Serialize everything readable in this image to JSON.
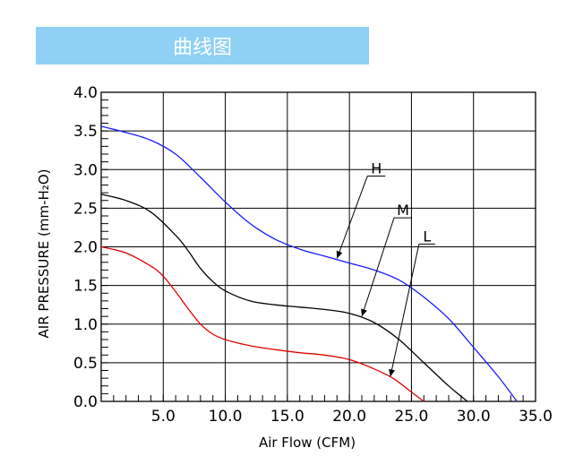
{
  "header": {
    "title": "曲线图"
  },
  "chart_data": {
    "type": "line",
    "title": "",
    "xlabel": "Air Flow (CFM)",
    "ylabel": "AIR PRESSURE (mm-H₂O)",
    "xlim": [
      0,
      35
    ],
    "ylim": [
      0,
      4
    ],
    "x_ticks": [
      "5.0",
      "10.0",
      "15.0",
      "20.0",
      "25.0",
      "30.0",
      "35.0"
    ],
    "y_ticks": [
      "0.0",
      "0.5",
      "1.0",
      "1.5",
      "2.0",
      "2.5",
      "3.0",
      "3.5",
      "4.0"
    ],
    "grid": true,
    "series": [
      {
        "name": "H",
        "color": "#1a1aff",
        "x": [
          0,
          2,
          4,
          6,
          8,
          10,
          12,
          14,
          16,
          18,
          20,
          22,
          24,
          26,
          28,
          30,
          32,
          33.5
        ],
        "y": [
          3.56,
          3.48,
          3.38,
          3.2,
          2.9,
          2.58,
          2.3,
          2.1,
          1.97,
          1.88,
          1.79,
          1.7,
          1.57,
          1.35,
          1.07,
          0.7,
          0.32,
          0
        ]
      },
      {
        "name": "M",
        "color": "#000000",
        "x": [
          0,
          2,
          4,
          6,
          7,
          8,
          9,
          10,
          12,
          14,
          16,
          18,
          20,
          22,
          24,
          26,
          28,
          29.5
        ],
        "y": [
          2.68,
          2.6,
          2.45,
          2.15,
          1.95,
          1.72,
          1.55,
          1.43,
          1.3,
          1.25,
          1.22,
          1.19,
          1.14,
          1.02,
          0.8,
          0.5,
          0.2,
          0
        ]
      },
      {
        "name": "L",
        "color": "#e00000",
        "x": [
          0,
          2,
          4,
          5,
          6,
          7,
          8,
          9,
          10,
          12,
          14,
          16,
          18,
          20,
          22,
          23.5,
          25,
          26
        ],
        "y": [
          2.0,
          1.92,
          1.75,
          1.62,
          1.42,
          1.2,
          1.0,
          0.87,
          0.8,
          0.72,
          0.67,
          0.63,
          0.6,
          0.54,
          0.42,
          0.3,
          0.12,
          0
        ]
      }
    ],
    "annotations": [
      {
        "label": "H",
        "series": "H",
        "x": 19,
        "y": 1.85
      },
      {
        "label": "M",
        "series": "M",
        "x": 21,
        "y": 1.1
      },
      {
        "label": "L",
        "series": "L",
        "x": 23.3,
        "y": 0.32
      }
    ]
  }
}
